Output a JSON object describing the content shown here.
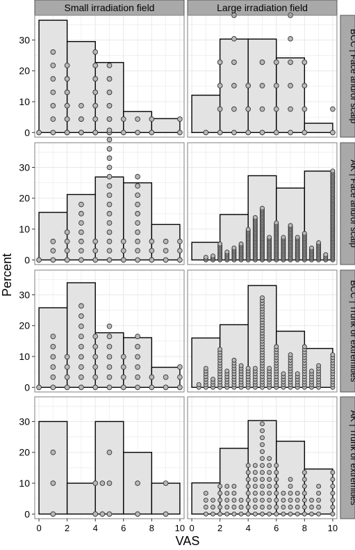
{
  "chart_data": {
    "type": "bar",
    "title": "",
    "xlabel": "VAS",
    "ylabel": "Percent",
    "x_ticks": [
      0,
      2,
      4,
      6,
      8,
      10
    ],
    "y_ticks": [
      0,
      10,
      20,
      30
    ],
    "xlim": [
      -0.3,
      10.3
    ],
    "ylim": [
      -1.5,
      38
    ],
    "grid": true,
    "bins": [
      [
        0,
        2
      ],
      [
        2,
        4
      ],
      [
        4,
        6
      ],
      [
        6,
        8
      ],
      [
        8,
        10
      ]
    ],
    "column_labels": [
      "Small irradiation field",
      "Large irradiation field"
    ],
    "row_labels": [
      "BCC | Face and/or scalp",
      "AK | Face and/or scalp",
      "BCC | Trunk or extremities",
      "AK | Trunk or extremities"
    ],
    "panels": [
      {
        "row": 0,
        "col": 0,
        "values": [
          36.4,
          29.5,
          22.7,
          6.8,
          4.5
        ],
        "dot_columns": [
          [
            0,
            0,
            1
          ],
          [
            1,
            6,
            1
          ],
          [
            2,
            4,
            1
          ],
          [
            2,
            5,
            1
          ],
          [
            3,
            1,
            1
          ],
          [
            3,
            2,
            1
          ],
          [
            4,
            4,
            1
          ],
          [
            4,
            6,
            1
          ],
          [
            5,
            4,
            1
          ],
          [
            5,
            5,
            1
          ],
          [
            6,
            1,
            1
          ],
          [
            7,
            1,
            1
          ],
          [
            8,
            1,
            1
          ],
          [
            10,
            1,
            1
          ]
        ],
        "dot_step": 4.35,
        "stacked": false
      },
      {
        "row": 0,
        "col": 1,
        "values": [
          12.1,
          30.3,
          30.3,
          24.2,
          3.0
        ],
        "dot_columns": [
          [
            1,
            0,
            1
          ],
          [
            2,
            3,
            1
          ],
          [
            3,
            5,
            1
          ],
          [
            4,
            2,
            1
          ],
          [
            5,
            3,
            1
          ],
          [
            6,
            3,
            1
          ],
          [
            7,
            5,
            1
          ],
          [
            8,
            3,
            1
          ],
          [
            10,
            1,
            1
          ]
        ],
        "dot_step": 7.6,
        "stacked": false
      },
      {
        "row": 1,
        "col": 0,
        "values": [
          15.4,
          21.2,
          26.9,
          25.0,
          11.5
        ],
        "dot_columns": [
          [
            0,
            0,
            1
          ],
          [
            1,
            2,
            1
          ],
          [
            2,
            3,
            1
          ],
          [
            3,
            6,
            1
          ],
          [
            4,
            2,
            1
          ],
          [
            5,
            14,
            1
          ],
          [
            6,
            2,
            1
          ],
          [
            7,
            9,
            1
          ],
          [
            8,
            2,
            1
          ],
          [
            9,
            2,
            1
          ],
          [
            10,
            2,
            1
          ]
        ],
        "dot_step": 3.0,
        "stacked": false
      },
      {
        "row": 1,
        "col": 1,
        "values": [
          5.7,
          14.7,
          27.3,
          23.3,
          28.8
        ],
        "dot_columns": [
          [
            1,
            2,
            0
          ],
          [
            1.5,
            3,
            0
          ],
          [
            2,
            12,
            0
          ],
          [
            2.5,
            6,
            0
          ],
          [
            3,
            9,
            0
          ],
          [
            3.5,
            12,
            0
          ],
          [
            4,
            23,
            0
          ],
          [
            4.5,
            32,
            0
          ],
          [
            5,
            39,
            0
          ],
          [
            5.5,
            17,
            0
          ],
          [
            6,
            28,
            0
          ],
          [
            6.5,
            17,
            0
          ],
          [
            7,
            26,
            0
          ],
          [
            7.5,
            17,
            0
          ],
          [
            8,
            20,
            0
          ],
          [
            8.5,
            9,
            0
          ],
          [
            9,
            13,
            0
          ],
          [
            9.5,
            4,
            0
          ],
          [
            10,
            67,
            0
          ]
        ],
        "dot_step": 0.43,
        "stacked": true
      },
      {
        "row": 2,
        "col": 0,
        "values": [
          25.8,
          33.9,
          17.7,
          16.1,
          6.5
        ],
        "dot_columns": [
          [
            0,
            0,
            1
          ],
          [
            1,
            5,
            1
          ],
          [
            2,
            3,
            1
          ],
          [
            3,
            8,
            1
          ],
          [
            4,
            5,
            1
          ],
          [
            5,
            6,
            1
          ],
          [
            6,
            3,
            1
          ],
          [
            7,
            5,
            1
          ],
          [
            8,
            1,
            1
          ],
          [
            9,
            1,
            1
          ],
          [
            10,
            2,
            1
          ]
        ],
        "dot_step": 3.3,
        "stacked": false
      },
      {
        "row": 2,
        "col": 1,
        "values": [
          16.0,
          20.3,
          33.0,
          18.2,
          12.6
        ],
        "dot_columns": [
          [
            0.5,
            1,
            0
          ],
          [
            1,
            7,
            0
          ],
          [
            1.5,
            3,
            0
          ],
          [
            2,
            14,
            0
          ],
          [
            2.5,
            6,
            0
          ],
          [
            3,
            10,
            0
          ],
          [
            3.5,
            8,
            0
          ],
          [
            4,
            7,
            0
          ],
          [
            4.5,
            7,
            0
          ],
          [
            5,
            33,
            0
          ],
          [
            5.5,
            7,
            0
          ],
          [
            6,
            15,
            0
          ],
          [
            6.5,
            5,
            0
          ],
          [
            7,
            12,
            0
          ],
          [
            7.5,
            5,
            0
          ],
          [
            8,
            15,
            0
          ],
          [
            8.5,
            6,
            0
          ],
          [
            9,
            8,
            0
          ],
          [
            10,
            12,
            0
          ]
        ],
        "dot_step": 0.88,
        "stacked": true
      },
      {
        "row": 3,
        "col": 0,
        "values": [
          30.0,
          10.0,
          30.0,
          20.0,
          10.0
        ],
        "dot_columns": [
          [
            1,
            2,
            1
          ],
          [
            4,
            1,
            1
          ],
          [
            4.5,
            1,
            1
          ],
          [
            5,
            2,
            1
          ],
          [
            7,
            1,
            1
          ],
          [
            9,
            1,
            1
          ]
        ],
        "dot_step": 10.0,
        "stacked": false
      },
      {
        "row": 3,
        "col": 1,
        "values": [
          10.1,
          21.3,
          30.3,
          23.6,
          14.6
        ],
        "dot_columns": [
          [
            1,
            3,
            0
          ],
          [
            1.5,
            2,
            0
          ],
          [
            2,
            4,
            0
          ],
          [
            2.5,
            4,
            0
          ],
          [
            3,
            4,
            0
          ],
          [
            3.5,
            2,
            0
          ],
          [
            4,
            7,
            0
          ],
          [
            4.5,
            7,
            0
          ],
          [
            5,
            13,
            0
          ],
          [
            5.5,
            8,
            0
          ],
          [
            6,
            7,
            0
          ],
          [
            6.5,
            3,
            0
          ],
          [
            7,
            5,
            0
          ],
          [
            7.5,
            3,
            0
          ],
          [
            8,
            6,
            0
          ],
          [
            8.5,
            2,
            0
          ],
          [
            9,
            4,
            0
          ],
          [
            10,
            6,
            0
          ]
        ],
        "dot_step": 2.25,
        "stacked": true
      }
    ]
  },
  "colors": {
    "bar_fill": "#e3e3e3",
    "bar_stroke": "#000000",
    "dot_fill": "#b8b8b8",
    "dot_stroke": "#333333",
    "panel_bg": "#ffffff",
    "panel_border": "#7f7f7f",
    "grid": "#e8e8e8",
    "strip_bg": "#a9a9a9",
    "strip_border": "#555555"
  }
}
